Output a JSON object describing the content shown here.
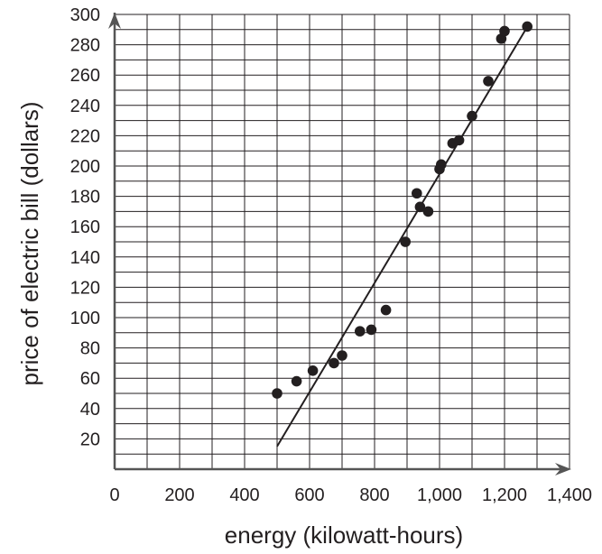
{
  "chart_data": {
    "type": "scatter",
    "xlabel": "energy (kilowatt-hours)",
    "ylabel": "price of electric bill (dollars)",
    "xlim": [
      0,
      1400
    ],
    "ylim": [
      0,
      300
    ],
    "x_tick_values": [
      0,
      200,
      400,
      600,
      800,
      1000,
      1200,
      1400
    ],
    "x_tick_labels": [
      "0",
      "200",
      "400",
      "600",
      "800",
      "1,000",
      "1,200",
      "1,400"
    ],
    "y_tick_values": [
      20,
      40,
      60,
      80,
      100,
      120,
      140,
      160,
      180,
      200,
      220,
      240,
      260,
      280,
      300
    ],
    "y_tick_labels": [
      "20",
      "40",
      "60",
      "80",
      "100",
      "120",
      "140",
      "160",
      "180",
      "200",
      "220",
      "240",
      "260",
      "280",
      "300"
    ],
    "grid": true,
    "grid_x_step": 100,
    "grid_y_step": 10,
    "points": [
      {
        "x": 500,
        "y": 50
      },
      {
        "x": 560,
        "y": 58
      },
      {
        "x": 610,
        "y": 65
      },
      {
        "x": 675,
        "y": 70
      },
      {
        "x": 700,
        "y": 75
      },
      {
        "x": 755,
        "y": 91
      },
      {
        "x": 790,
        "y": 92
      },
      {
        "x": 835,
        "y": 105
      },
      {
        "x": 895,
        "y": 150
      },
      {
        "x": 930,
        "y": 182
      },
      {
        "x": 940,
        "y": 173
      },
      {
        "x": 965,
        "y": 170
      },
      {
        "x": 1000,
        "y": 198
      },
      {
        "x": 1005,
        "y": 201
      },
      {
        "x": 1040,
        "y": 215
      },
      {
        "x": 1060,
        "y": 217
      },
      {
        "x": 1100,
        "y": 233
      },
      {
        "x": 1150,
        "y": 256
      },
      {
        "x": 1190,
        "y": 284
      },
      {
        "x": 1200,
        "y": 289
      },
      {
        "x": 1270,
        "y": 292
      }
    ],
    "fit_line": {
      "x": [
        500,
        1265
      ],
      "y": [
        15,
        290
      ]
    },
    "colors": {
      "points": "#231f20",
      "line": "#231f20",
      "grid": "#231f20",
      "axis": "#555555",
      "text": "#231f20"
    }
  }
}
